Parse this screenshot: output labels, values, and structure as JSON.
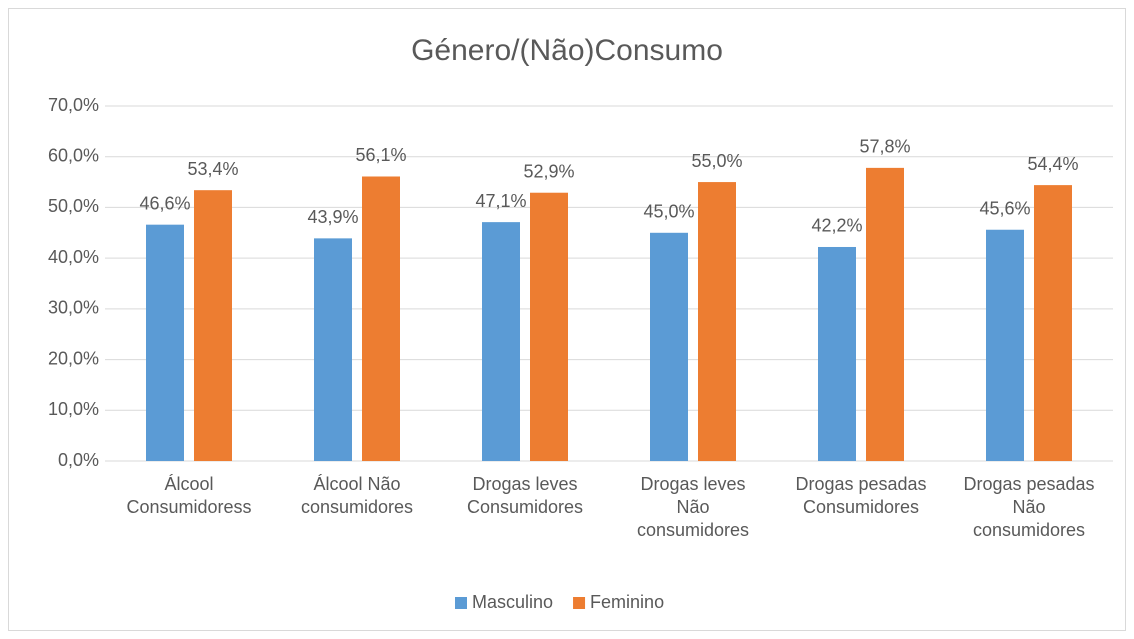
{
  "chart_data": {
    "type": "bar",
    "title": "Género/(Não)Consumo",
    "categories": [
      "Álcool Consumidoress",
      "Álcool Não consumidores",
      "Drogas leves Consumidores",
      "Drogas leves Não consumidores",
      "Drogas pesadas Consumidores",
      "Drogas pesadas Não consumidores"
    ],
    "series": [
      {
        "name": "Masculino",
        "color": "#5b9bd5",
        "values": [
          46.6,
          43.9,
          47.1,
          45.0,
          42.2,
          45.6
        ],
        "value_labels": [
          "46,6%",
          "43,9%",
          "47,1%",
          "45,0%",
          "42,2%",
          "45,6%"
        ]
      },
      {
        "name": "Feminino",
        "color": "#ed7d31",
        "values": [
          53.4,
          56.1,
          52.9,
          55.0,
          57.8,
          54.4
        ],
        "value_labels": [
          "53,4%",
          "56,1%",
          "52,9%",
          "55,0%",
          "57,8%",
          "54,4%"
        ]
      }
    ],
    "ylim": [
      0,
      70
    ],
    "yticks": [
      {
        "value": 0,
        "label": "0,0%"
      },
      {
        "value": 10,
        "label": "10,0%"
      },
      {
        "value": 20,
        "label": "20,0%"
      },
      {
        "value": 30,
        "label": "30,0%"
      },
      {
        "value": 40,
        "label": "40,0%"
      },
      {
        "value": 50,
        "label": "50,0%"
      },
      {
        "value": 60,
        "label": "60,0%"
      },
      {
        "value": 70,
        "label": "70,0%"
      }
    ],
    "grid": true,
    "legend": "bottom"
  }
}
